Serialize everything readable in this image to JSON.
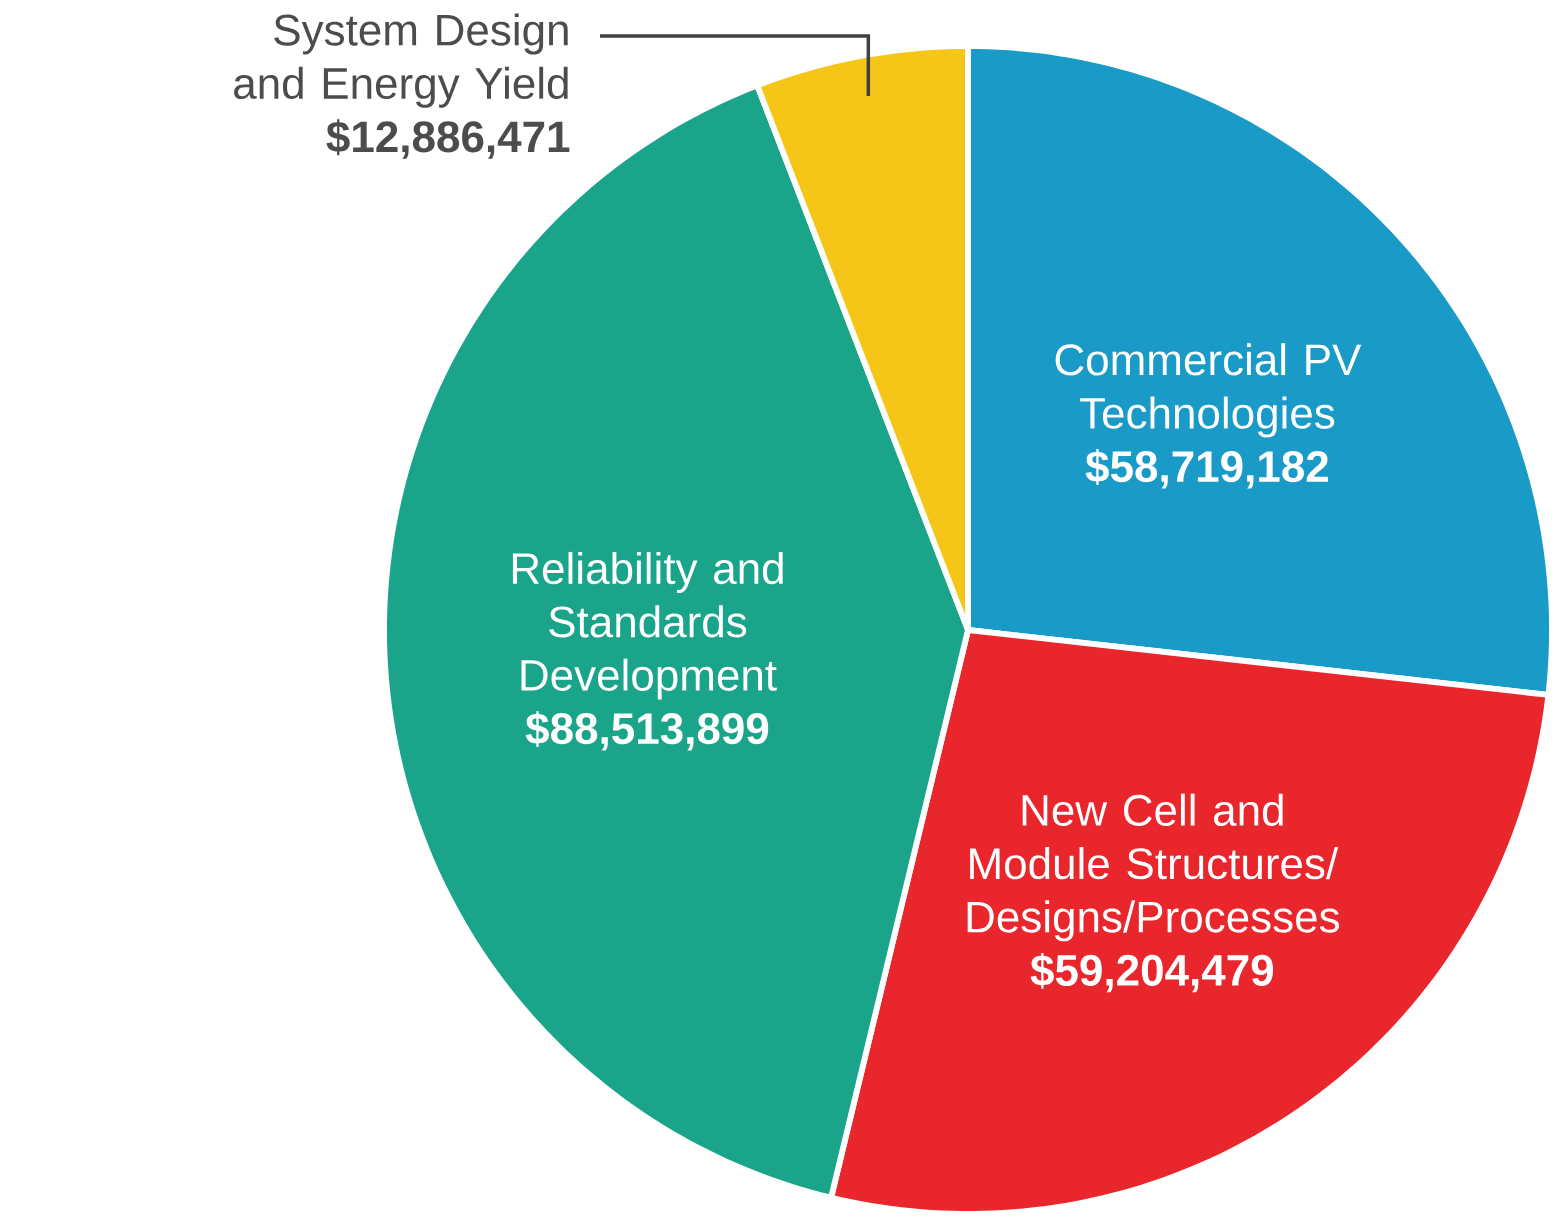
{
  "chart_data": {
    "type": "pie",
    "categories": [
      "Commercial PV Technologies",
      "New Cell and Module Structures/ Designs/Processes",
      "Reliability and Standards Development",
      "System Design and Energy Yield"
    ],
    "values": [
      58719182,
      59204479,
      88513899,
      12886471
    ],
    "colors": [
      "#1a9bc7",
      "#e8262c",
      "#1aa58a",
      "#f5c518"
    ],
    "value_labels": [
      "$58,719,182",
      "$59,204,479",
      "$88,513,899",
      "$12,886,471"
    ]
  }
}
